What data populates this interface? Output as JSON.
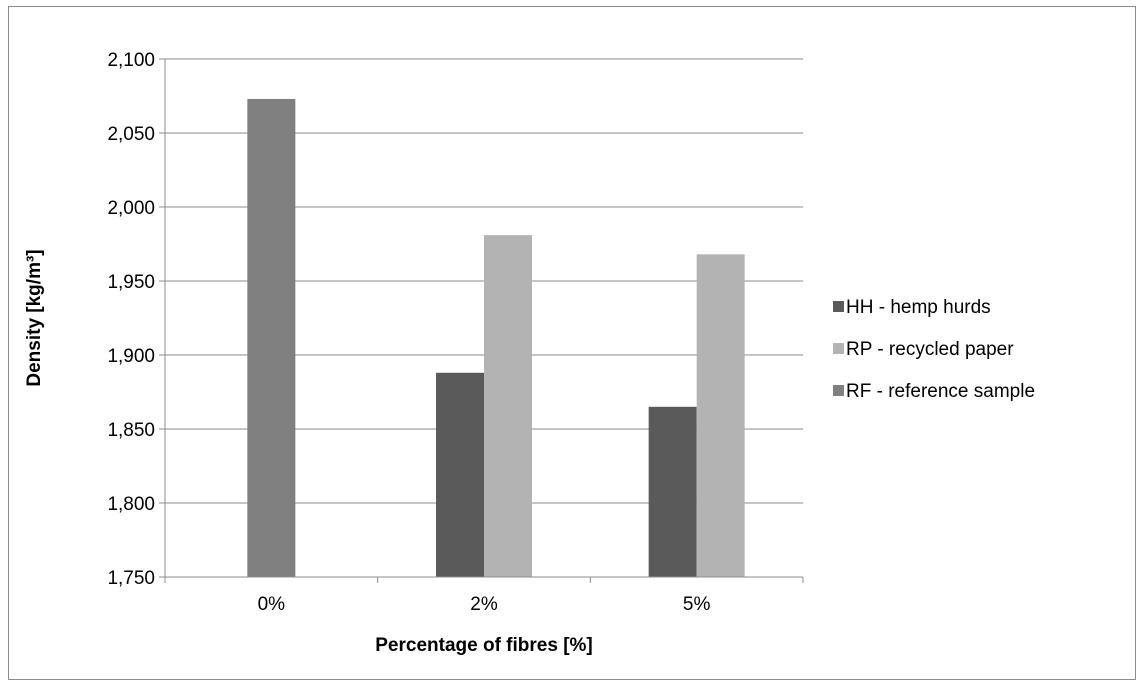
{
  "chart_data": {
    "type": "bar",
    "categories": [
      "0%",
      "2%",
      "5%"
    ],
    "series": [
      {
        "name": "HH - hemp hurds",
        "color": "#5a5a5a",
        "values": [
          null,
          1888,
          1865
        ]
      },
      {
        "name": "RP - recycled paper",
        "color": "#b3b3b3",
        "values": [
          null,
          1981,
          1968
        ]
      },
      {
        "name": "RF - reference sample",
        "color": "#808080",
        "values": [
          2073,
          null,
          null
        ]
      }
    ],
    "xlabel": "Percentage of fibres [%]",
    "ylabel": "Density [kg/m³]",
    "ylim": [
      1750,
      2100
    ],
    "yticks": [
      1750,
      1800,
      1850,
      1900,
      1950,
      2000,
      2050,
      2100
    ],
    "ytick_labels": [
      "1,750",
      "1,800",
      "1,850",
      "1,900",
      "1,950",
      "2,000",
      "2,050",
      "2,100"
    ],
    "grid": true,
    "legend_position": "right"
  }
}
